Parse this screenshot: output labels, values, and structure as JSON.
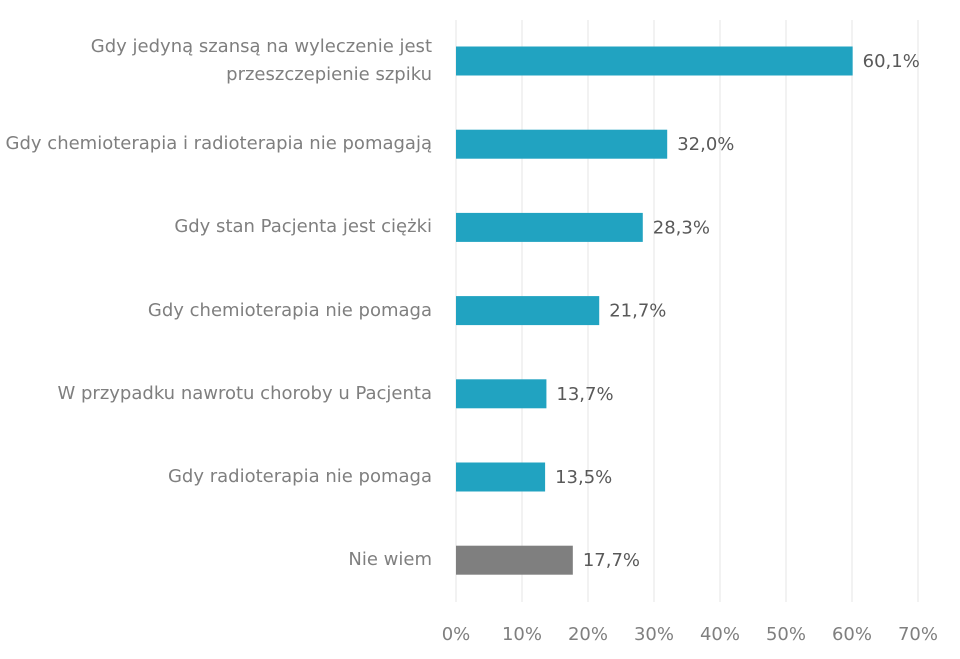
{
  "chart_data": {
    "type": "barh",
    "categories": [
      "Gdy jedyną szansą na wyleczenie jest przeszczepienie szpiku",
      "Gdy chemioterapia i radioterapia nie pomagają",
      "Gdy stan Pacjenta jest ciężki",
      "Gdy chemioterapia nie pomaga",
      "W przypadku nawrotu choroby u Pacjenta",
      "Gdy radioterapia nie pomaga",
      "Nie wiem"
    ],
    "values": [
      60.1,
      32.0,
      28.3,
      21.7,
      13.7,
      13.5,
      17.7
    ],
    "value_labels": [
      "60,1%",
      "32,0%",
      "28,3%",
      "21,7%",
      "13,7%",
      "13,5%",
      "17,7%"
    ],
    "colors": [
      "#21a3c1",
      "#21a3c1",
      "#21a3c1",
      "#21a3c1",
      "#21a3c1",
      "#21a3c1",
      "#7f7f7f"
    ],
    "xlim": [
      0,
      70
    ],
    "xticks": [
      {
        "value": 0,
        "label": "0%"
      },
      {
        "value": 10,
        "label": "10%"
      },
      {
        "value": 20,
        "label": "20%"
      },
      {
        "value": 30,
        "label": "30%"
      },
      {
        "value": 40,
        "label": "40%"
      },
      {
        "value": 50,
        "label": "50%"
      },
      {
        "value": 60,
        "label": "60%"
      },
      {
        "value": 70,
        "label": "70%"
      }
    ],
    "grid": true
  }
}
